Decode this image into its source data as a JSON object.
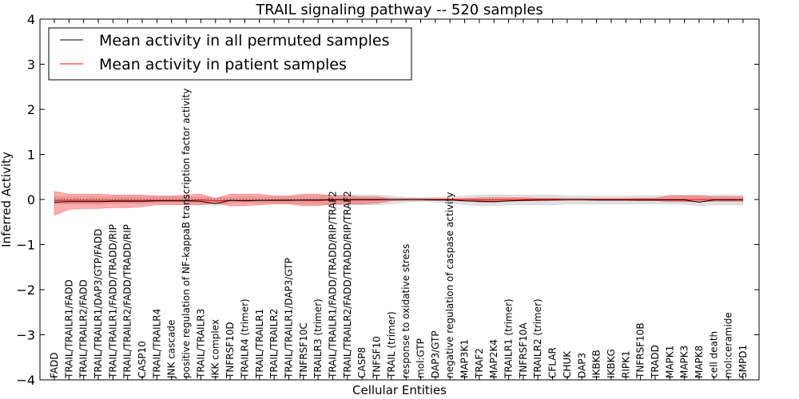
{
  "chart_data": {
    "type": "line",
    "title": "TRAIL signaling pathway -- 520 samples",
    "xlabel": "Cellular Entities",
    "ylabel": "Inferred Activity",
    "ylim": [
      -4,
      4
    ],
    "yticks": [
      "4",
      "3",
      "2",
      "1",
      "0",
      "−1",
      "−2",
      "−3",
      "−4"
    ],
    "ytick_values": [
      4,
      3,
      2,
      1,
      0,
      -1,
      -2,
      -3,
      -4
    ],
    "grid": false,
    "legend_position": "top-left",
    "categories": [
      "FADD",
      "TRAIL/TRAILR1/FADD",
      "TRAIL/TRAILR2/FADD",
      "TRAIL/TRAILR1/DAP3/GTP/FADD",
      "TRAIL/TRAILR1/FADD/TRADD/RIP",
      "TRAIL/TRAILR2/FADD/TRADD/RIP",
      "CASP10",
      "TRAIL/TRAILR4",
      "JNK cascade",
      "positive regulation of NF-kappaB transcription factor activity",
      "TRAIL/TRAILR3",
      "IKK complex",
      "TNFRSF10D",
      "TRAILR4 (trimer)",
      "TRAIL/TRAILR1",
      "TRAIL/TRAILR2",
      "TRAIL/TRAILR1/DAP3/GTP",
      "TNFRSF10C",
      "TRAILR3 (trimer)",
      "TRAIL/TRAILR1/FADD/TRADD/RIP/TRAF2",
      "TRAIL/TRAILR2/FADD/TRADD/RIP/TRAF2",
      "CASP8",
      "TNFSF10",
      "TRAIL (trimer)",
      "response to oxidative stress",
      "mol:GTP",
      "DAP3/GTP",
      "negative regulation of caspase activity",
      "MAP3K1",
      "TRAF2",
      "MAP2K4",
      "TRAILR1 (trimer)",
      "TNFRSF10A",
      "TRAILR2 (trimer)",
      "CFLAR",
      "CHUK",
      "DAP3",
      "IKBKB",
      "IKBKG",
      "RIPK1",
      "TNFRSF10B",
      "TRADD",
      "MAPK1",
      "MAPK3",
      "MAPK8",
      "cell death",
      "mol:ceramide",
      "SMPD1"
    ],
    "series": [
      {
        "name": "Mean activity in all permuted samples",
        "color": "#000000",
        "values": [
          -0.06,
          -0.05,
          -0.05,
          -0.05,
          -0.04,
          -0.04,
          -0.04,
          -0.03,
          -0.03,
          -0.03,
          -0.04,
          -0.09,
          -0.02,
          -0.03,
          -0.02,
          -0.02,
          -0.02,
          -0.01,
          -0.01,
          0.0,
          0.0,
          0.0,
          0.0,
          0.0,
          0.0,
          0.0,
          -0.01,
          -0.01,
          -0.03,
          -0.04,
          -0.05,
          -0.03,
          -0.02,
          -0.01,
          -0.01,
          0.0,
          0.0,
          -0.01,
          -0.01,
          -0.01,
          -0.01,
          -0.01,
          -0.01,
          -0.01,
          -0.06,
          -0.01,
          -0.01,
          -0.01
        ],
        "band_low": [
          -0.1,
          -0.1,
          -0.1,
          -0.1,
          -0.09,
          -0.09,
          -0.09,
          -0.08,
          -0.08,
          -0.08,
          -0.09,
          -0.14,
          -0.08,
          -0.08,
          -0.08,
          -0.08,
          -0.08,
          -0.1,
          -0.1,
          -0.12,
          -0.12,
          -0.12,
          -0.12,
          -0.1,
          -0.06,
          -0.04,
          -0.06,
          -0.08,
          -0.12,
          -0.14,
          -0.14,
          -0.12,
          -0.12,
          -0.12,
          -0.12,
          -0.1,
          -0.1,
          -0.1,
          -0.1,
          -0.1,
          -0.1,
          -0.1,
          -0.1,
          -0.1,
          -0.14,
          -0.12,
          -0.12,
          -0.12
        ],
        "band_high": [
          0.06,
          0.06,
          0.06,
          0.06,
          0.06,
          0.06,
          0.06,
          0.06,
          0.06,
          0.06,
          0.06,
          0.04,
          0.06,
          0.06,
          0.06,
          0.06,
          0.06,
          0.08,
          0.08,
          0.1,
          0.1,
          0.1,
          0.1,
          0.08,
          0.05,
          0.04,
          0.05,
          0.06,
          0.08,
          0.1,
          0.1,
          0.1,
          0.1,
          0.1,
          0.1,
          0.08,
          0.08,
          0.08,
          0.08,
          0.08,
          0.08,
          0.08,
          0.1,
          0.1,
          0.1,
          0.1,
          0.1,
          0.1
        ]
      },
      {
        "name": "Mean activity in patient samples",
        "color": "#ff0000",
        "values": [
          -0.02,
          -0.02,
          -0.02,
          -0.02,
          -0.02,
          -0.02,
          -0.02,
          -0.02,
          -0.02,
          -0.02,
          -0.01,
          -0.03,
          -0.02,
          -0.02,
          -0.02,
          -0.01,
          -0.01,
          -0.02,
          -0.02,
          -0.01,
          -0.01,
          -0.01,
          -0.01,
          0.0,
          0.0,
          0.0,
          0.0,
          0.0,
          0.0,
          -0.01,
          -0.01,
          0.0,
          0.0,
          0.0,
          0.0,
          0.0,
          0.0,
          0.0,
          0.0,
          0.0,
          0.0,
          0.0,
          0.0,
          0.0,
          0.0,
          0.0,
          0.0,
          0.0
        ],
        "band_low": [
          -0.35,
          -0.22,
          -0.2,
          -0.2,
          -0.18,
          -0.18,
          -0.16,
          -0.12,
          -0.12,
          -0.12,
          -0.12,
          -0.08,
          -0.14,
          -0.14,
          -0.12,
          -0.1,
          -0.1,
          -0.14,
          -0.14,
          -0.1,
          -0.1,
          -0.1,
          -0.08,
          -0.03,
          -0.02,
          -0.02,
          -0.02,
          -0.02,
          -0.02,
          -0.06,
          -0.06,
          -0.04,
          -0.03,
          -0.03,
          -0.02,
          -0.02,
          -0.02,
          -0.02,
          -0.02,
          -0.02,
          -0.03,
          -0.03,
          -0.05,
          -0.05,
          -0.05,
          -0.04,
          -0.04,
          -0.04
        ],
        "band_high": [
          0.18,
          0.12,
          0.12,
          0.12,
          0.1,
          0.1,
          0.1,
          0.08,
          0.08,
          0.1,
          0.12,
          0.02,
          0.12,
          0.12,
          0.12,
          0.08,
          0.08,
          0.12,
          0.12,
          0.08,
          0.08,
          0.06,
          0.06,
          0.02,
          0.02,
          0.02,
          0.02,
          0.02,
          0.02,
          0.04,
          0.04,
          0.04,
          0.04,
          0.03,
          0.03,
          0.02,
          0.02,
          0.02,
          0.02,
          0.02,
          0.03,
          0.03,
          0.08,
          0.08,
          0.08,
          0.06,
          0.06,
          0.06
        ]
      }
    ],
    "dotted_series": {
      "name": "",
      "color": "#444444",
      "values": [
        0.0,
        0.0,
        0.0,
        0.0,
        0.0,
        0.0,
        0.0,
        0.0,
        0.0,
        0.0,
        0.0,
        0.0,
        0.0,
        0.0,
        0.0,
        0.0,
        0.0,
        0.0,
        0.0,
        0.0,
        0.0,
        0.0,
        0.0,
        0.0,
        0.0,
        0.0,
        0.0,
        0.0,
        0.0,
        0.0,
        0.0,
        0.0,
        0.0,
        0.0,
        0.0,
        0.0,
        0.0,
        0.0,
        0.0,
        0.0,
        0.0,
        0.0,
        0.0,
        0.0,
        0.0,
        0.0,
        0.0,
        0.0
      ]
    }
  }
}
